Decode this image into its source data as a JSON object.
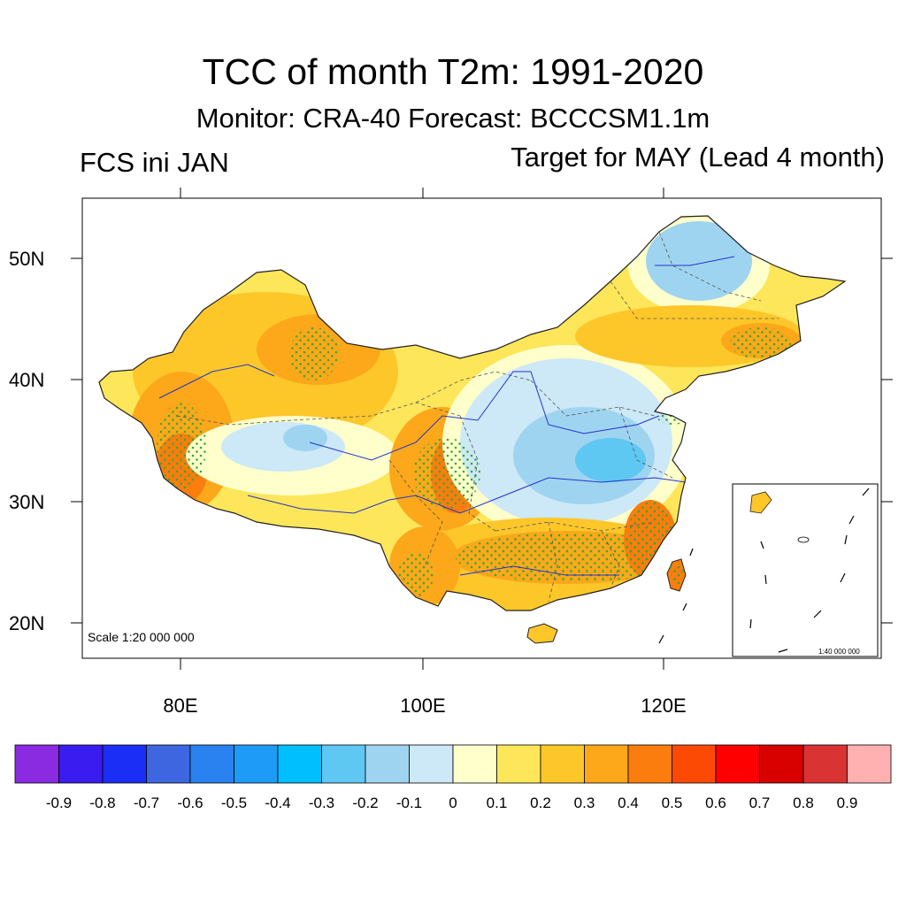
{
  "title": "TCC of month T2m: 1991-2020",
  "subtitle": "Monitor: CRA-40   Forecast: BCCCSM1.1m",
  "left_label": "FCS ini JAN",
  "right_label": "Target for MAY (Lead 4 month)",
  "scale_main": "Scale 1:20 000 000",
  "scale_inset": "1:40 000 000",
  "lat_labels": [
    "50N",
    "40N",
    "30N",
    "20N"
  ],
  "lon_labels": [
    "80E",
    "100E",
    "120E"
  ],
  "colorbar": {
    "colors": [
      "#8a2be2",
      "#3b1cf0",
      "#1a2ef5",
      "#3d66e0",
      "#2a82f0",
      "#1e9af7",
      "#00bfff",
      "#5ec8f2",
      "#9fd4f0",
      "#cde8f6",
      "#ffffcc",
      "#fde65a",
      "#fdc72a",
      "#fca81a",
      "#fb7d0e",
      "#fc4a04",
      "#ff0000",
      "#d90000",
      "#d93333",
      "#ffb0b0"
    ],
    "labels": [
      "-0.9",
      "-0.8",
      "-0.7",
      "-0.6",
      "-0.5",
      "-0.4",
      "-0.3",
      "-0.2",
      "-0.1",
      "0",
      "0.1",
      "0.2",
      "0.3",
      "0.4",
      "0.5",
      "0.6",
      "0.7",
      "0.8",
      "0.9"
    ]
  },
  "colors": {
    "border": "#222222",
    "river": "#2233cc",
    "stipple": "#33aa33"
  }
}
